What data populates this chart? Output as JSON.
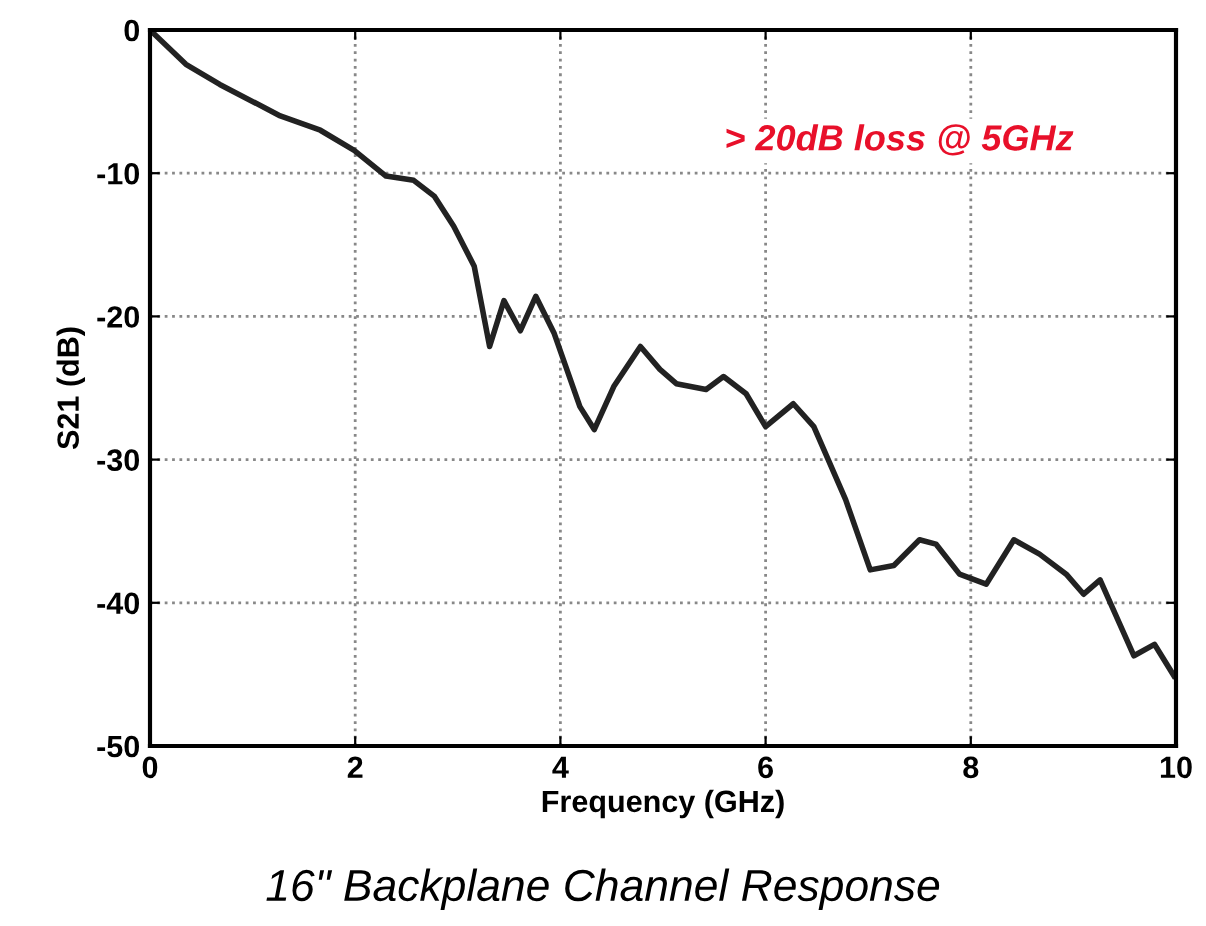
{
  "chart_data": {
    "type": "line",
    "xlabel": "Frequency (GHz)",
    "ylabel": "S21 (dB)",
    "x": [
      0,
      0.35,
      0.68,
      1.27,
      1.66,
      1.99,
      2.3,
      2.57,
      2.77,
      2.96,
      3.16,
      3.31,
      3.45,
      3.61,
      3.76,
      3.94,
      4.19,
      4.33,
      4.52,
      4.78,
      4.97,
      5.13,
      5.42,
      5.59,
      5.81,
      6.0,
      6.27,
      6.47,
      6.78,
      7.02,
      7.25,
      7.5,
      7.66,
      7.89,
      8.15,
      8.42,
      8.67,
      8.93,
      9.1,
      9.26,
      9.59,
      9.79,
      9.98
    ],
    "series": [
      {
        "color": "#222222",
        "values": [
          0,
          -2.4,
          -3.8,
          -6.0,
          -7.0,
          -8.4,
          -10.2,
          -10.5,
          -11.6,
          -13.7,
          -16.5,
          -22.1,
          -18.9,
          -21.0,
          -18.6,
          -21.2,
          -26.3,
          -27.9,
          -24.9,
          -22.1,
          -23.7,
          -24.7,
          -25.1,
          -24.2,
          -25.4,
          -27.7,
          -26.1,
          -27.7,
          -32.8,
          -37.7,
          -37.4,
          -35.6,
          -35.9,
          -38.0,
          -38.7,
          -35.6,
          -36.6,
          -38.0,
          -39.4,
          -38.4,
          -43.7,
          -42.9,
          -45.1
        ]
      }
    ],
    "xlim": [
      0,
      10
    ],
    "xticks": [
      0,
      2,
      4,
      6,
      8,
      10
    ],
    "ylim": [
      -50,
      0
    ],
    "yticks": [
      -50,
      -40,
      -30,
      -20,
      -10,
      0
    ],
    "grid": true,
    "marker": "none",
    "line_style": "solid",
    "annotations": [
      "> 20dB loss @ 5GHz",
      "16\" Backplane Channel Response"
    ]
  }
}
